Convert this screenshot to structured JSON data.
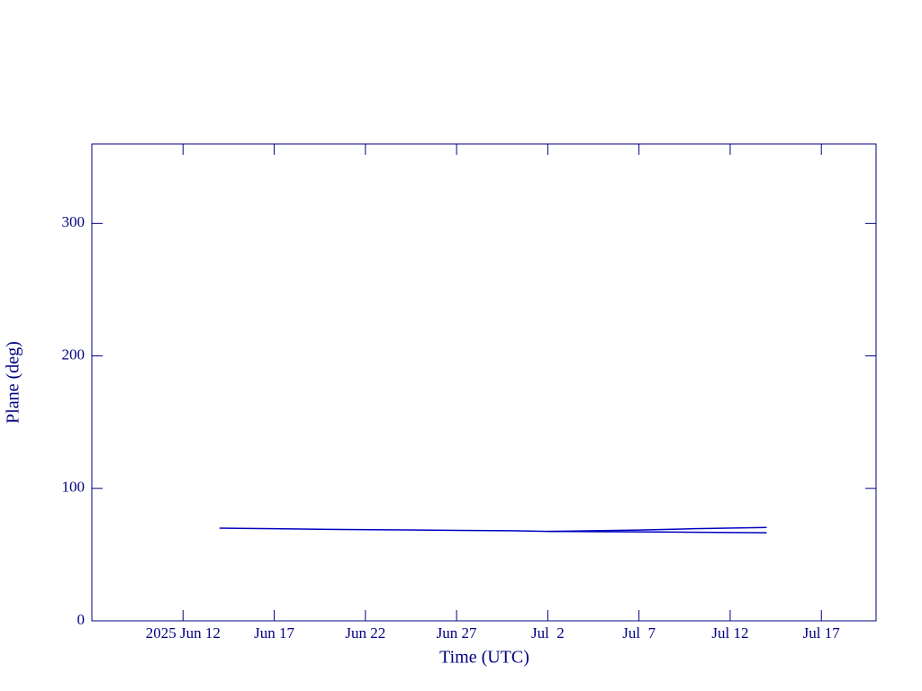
{
  "chart_data": {
    "type": "line",
    "xlabel": "Time (UTC)",
    "ylabel": "Plane (deg)",
    "xlim": [
      "2025-06-07",
      "2025-07-20"
    ],
    "xticks": [
      {
        "value": "2025-06-12",
        "label": "2025 Jun 12"
      },
      {
        "value": "2025-06-17",
        "label": "Jun 17"
      },
      {
        "value": "2025-06-22",
        "label": "Jun 22"
      },
      {
        "value": "2025-06-27",
        "label": "Jun 27"
      },
      {
        "value": "2025-07-02",
        "label": "Jul  2"
      },
      {
        "value": "2025-07-07",
        "label": "Jul  7"
      },
      {
        "value": "2025-07-12",
        "label": "Jul 12"
      },
      {
        "value": "2025-07-17",
        "label": "Jul 17"
      }
    ],
    "ylim": [
      0,
      360
    ],
    "yticks": [
      0,
      100,
      200,
      300
    ],
    "series": [
      {
        "color": "#0000c0",
        "x": [
          "2025-06-14",
          "2025-06-17",
          "2025-06-20",
          "2025-06-25",
          "2025-06-30",
          "2025-07-02",
          "2025-07-07",
          "2025-07-10",
          "2025-07-14"
        ],
        "values": [
          70,
          69.5,
          69,
          68.5,
          68,
          67.5,
          68.5,
          69.5,
          70.5
        ]
      },
      {
        "color": "#0000c0",
        "x": [
          "2025-07-02",
          "2025-07-09",
          "2025-07-14"
        ],
        "values": [
          67.5,
          67,
          66.5
        ]
      }
    ]
  }
}
